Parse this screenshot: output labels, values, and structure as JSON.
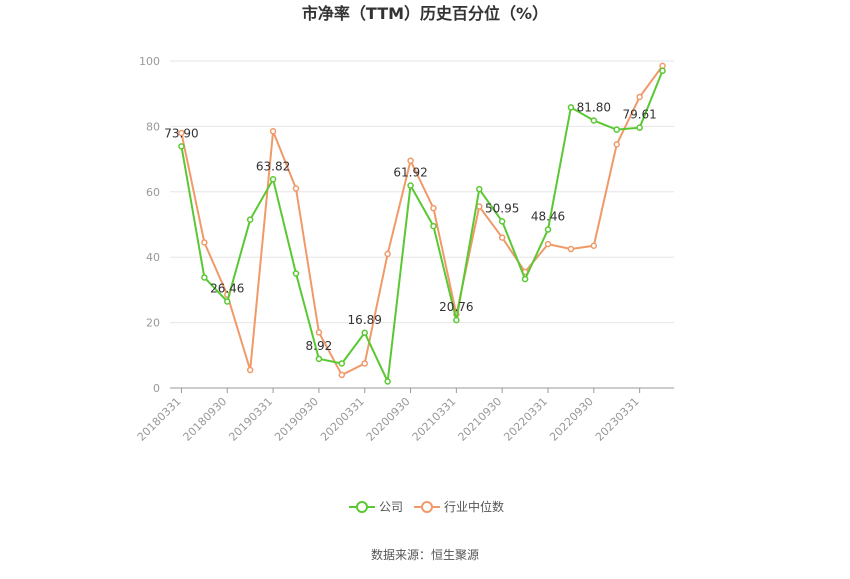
{
  "chart_data": {
    "type": "line",
    "title": "市净率（TTM）历史百分位（%）",
    "x": [
      "20180331",
      "20180630",
      "20180930",
      "20181231",
      "20190331",
      "20190630",
      "20190930",
      "20191231",
      "20200331",
      "20200630",
      "20200930",
      "20201231",
      "20210331",
      "20210630",
      "20210930",
      "20211231",
      "20220331",
      "20220630",
      "20220930",
      "20221231",
      "20230331",
      "20230630"
    ],
    "x_tick_labels": [
      "20180331",
      "20180930",
      "20190331",
      "20190930",
      "20200331",
      "20200930",
      "20210331",
      "20210930",
      "20220331",
      "20220930",
      "20230331"
    ],
    "ylim": [
      0,
      100
    ],
    "y_ticks": [
      0,
      20,
      40,
      60,
      80,
      100
    ],
    "grid": true,
    "legend_position": "bottom",
    "series": [
      {
        "name": "公司",
        "color": "#5ac833",
        "values": [
          73.9,
          33.8,
          26.46,
          51.5,
          63.82,
          35.0,
          8.92,
          7.5,
          16.89,
          2.0,
          61.92,
          49.5,
          20.76,
          60.8,
          50.95,
          33.3,
          48.46,
          85.8,
          81.8,
          79.0,
          79.61,
          97.0
        ]
      },
      {
        "name": "行业中位数",
        "color": "#f09a6a",
        "values": [
          78.0,
          44.5,
          28.5,
          5.5,
          78.5,
          61.0,
          17.0,
          4.0,
          7.5,
          41.0,
          69.5,
          55.0,
          22.5,
          55.5,
          46.0,
          35.5,
          44.0,
          42.5,
          43.5,
          74.5,
          89.0,
          98.5
        ]
      }
    ],
    "data_labels": [
      {
        "series": 0,
        "index": 0,
        "text": "73.90"
      },
      {
        "series": 0,
        "index": 2,
        "text": "26.46"
      },
      {
        "series": 0,
        "index": 4,
        "text": "63.82"
      },
      {
        "series": 0,
        "index": 6,
        "text": "8.92"
      },
      {
        "series": 0,
        "index": 8,
        "text": "16.89"
      },
      {
        "series": 0,
        "index": 10,
        "text": "61.92"
      },
      {
        "series": 0,
        "index": 12,
        "text": "20.76"
      },
      {
        "series": 0,
        "index": 14,
        "text": "50.95"
      },
      {
        "series": 0,
        "index": 16,
        "text": "48.46"
      },
      {
        "series": 0,
        "index": 18,
        "text": "81.80"
      },
      {
        "series": 0,
        "index": 20,
        "text": "79.61"
      }
    ]
  },
  "source": "数据来源：恒生聚源"
}
